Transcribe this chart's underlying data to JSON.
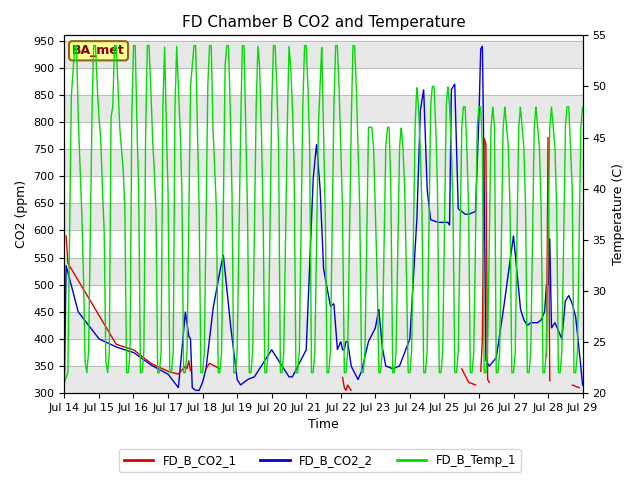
{
  "title": "FD Chamber B CO2 and Temperature",
  "xlabel": "Time",
  "ylabel_left": "CO2 (ppm)",
  "ylabel_right": "Temperature (C)",
  "co2_ylim": [
    300,
    960
  ],
  "temp_ylim": [
    20,
    55
  ],
  "co2_yticks": [
    300,
    350,
    400,
    450,
    500,
    550,
    600,
    650,
    700,
    750,
    800,
    850,
    900,
    950
  ],
  "temp_yticks": [
    20,
    25,
    30,
    35,
    40,
    45,
    50,
    55
  ],
  "xtick_labels": [
    "Jul 14",
    "Jul 15",
    "Jul 16",
    "Jul 17",
    "Jul 18",
    "Jul 19",
    "Jul 20",
    "Jul 21",
    "Jul 22",
    "Jul 23",
    "Jul 24",
    "Jul 25",
    "Jul 26",
    "Jul 27",
    "Jul 28",
    "Jul 29"
  ],
  "color_co2_1": "#dd0000",
  "color_co2_2": "#0000dd",
  "color_temp": "#00dd00",
  "legend_label_1": "FD_B_CO2_1",
  "legend_label_2": "FD_B_CO2_2",
  "legend_label_3": "FD_B_Temp_1",
  "annotation_text": "BA_met",
  "background_color": "#ffffff",
  "grid_color": "#bbbbbb",
  "band_color": "#e8e8e8"
}
